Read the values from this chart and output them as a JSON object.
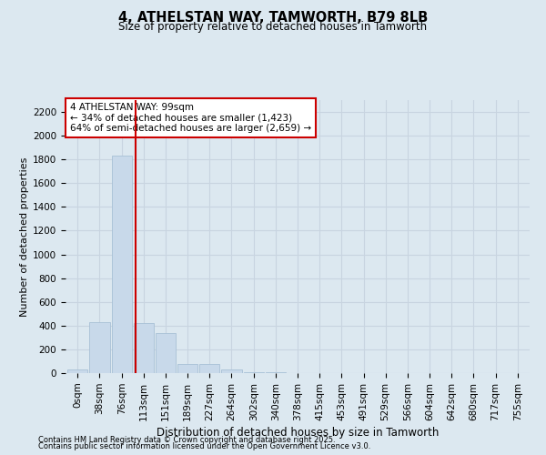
{
  "title": "4, ATHELSTAN WAY, TAMWORTH, B79 8LB",
  "subtitle": "Size of property relative to detached houses in Tamworth",
  "xlabel": "Distribution of detached houses by size in Tamworth",
  "ylabel": "Number of detached properties",
  "footnote1": "Contains HM Land Registry data © Crown copyright and database right 2025.",
  "footnote2": "Contains public sector information licensed under the Open Government Licence v3.0.",
  "annotation_line1": "4 ATHELSTAN WAY: 99sqm",
  "annotation_line2": "← 34% of detached houses are smaller (1,423)",
  "annotation_line3": "64% of semi-detached houses are larger (2,659) →",
  "categories": [
    "0sqm",
    "38sqm",
    "76sqm",
    "113sqm",
    "151sqm",
    "189sqm",
    "227sqm",
    "264sqm",
    "302sqm",
    "340sqm",
    "378sqm",
    "415sqm",
    "453sqm",
    "491sqm",
    "529sqm",
    "566sqm",
    "604sqm",
    "642sqm",
    "680sqm",
    "717sqm",
    "755sqm"
  ],
  "values": [
    30,
    430,
    1830,
    420,
    340,
    80,
    80,
    30,
    5,
    5,
    2,
    1,
    0,
    0,
    0,
    0,
    0,
    0,
    0,
    0,
    0
  ],
  "bar_color": "#c8d9ea",
  "bar_edge_color": "#a8c0d6",
  "vline_color": "#cc0000",
  "property_bin": 2.63,
  "annotation_box_facecolor": "#ffffff",
  "annotation_box_edgecolor": "#cc0000",
  "grid_color": "#c8d4e0",
  "bg_color": "#dce8f0",
  "ylim": [
    0,
    2300
  ],
  "yticks": [
    0,
    200,
    400,
    600,
    800,
    1000,
    1200,
    1400,
    1600,
    1800,
    2000,
    2200
  ],
  "title_fontsize": 10.5,
  "subtitle_fontsize": 8.5,
  "ylabel_fontsize": 8,
  "xlabel_fontsize": 8.5,
  "tick_fontsize": 7.5,
  "annotation_fontsize": 7.5
}
